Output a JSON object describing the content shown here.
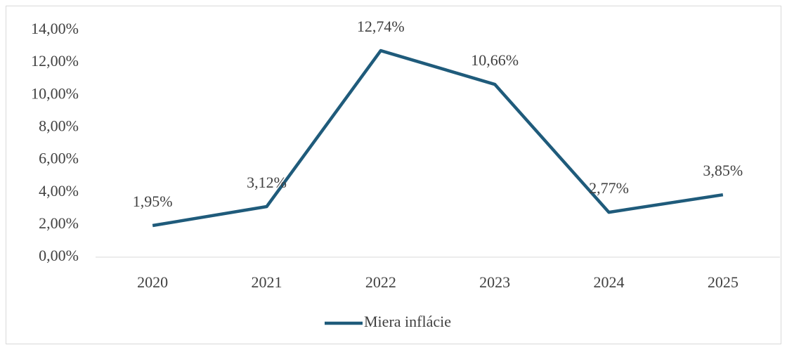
{
  "chart_data": {
    "type": "line",
    "categories": [
      "2020",
      "2021",
      "2022",
      "2023",
      "2024",
      "2025"
    ],
    "series": [
      {
        "name": "Miera inflácie",
        "color": "#1f5b7b",
        "values": [
          1.95,
          3.12,
          12.74,
          10.66,
          2.77,
          3.85
        ],
        "value_labels": [
          "1,95%",
          "3,12%",
          "12,74%",
          "10,66%",
          "2,77%",
          "3,85%"
        ]
      }
    ],
    "ylim": [
      0,
      14
    ],
    "yticks": [
      {
        "value": 0,
        "label": "0,00%"
      },
      {
        "value": 2,
        "label": "2,00%"
      },
      {
        "value": 4,
        "label": "4,00%"
      },
      {
        "value": 6,
        "label": "6,00%"
      },
      {
        "value": 8,
        "label": "8,00%"
      },
      {
        "value": 10,
        "label": "10,00%"
      },
      {
        "value": 12,
        "label": "12,00%"
      },
      {
        "value": 14,
        "label": "14,00%"
      }
    ],
    "grid": false,
    "legend": "bottom"
  }
}
